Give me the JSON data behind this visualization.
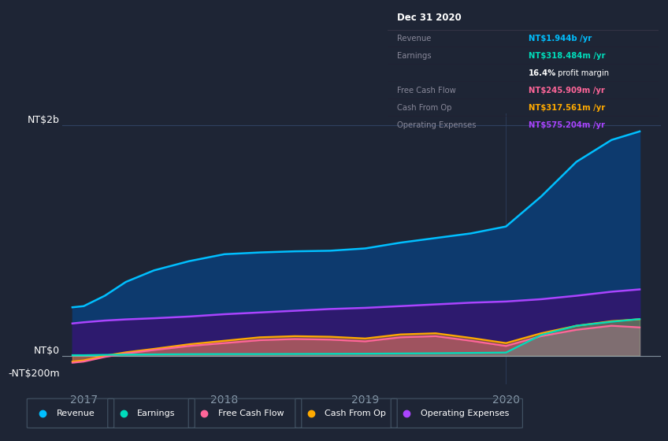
{
  "bg_color": "#1e2535",
  "plot_bg_color": "#1e2535",
  "y_label_top": "NT$2b",
  "y_label_zero": "NT$0",
  "y_label_neg": "-NT$200m",
  "ylim": [
    -250,
    2100
  ],
  "xlim_left": 2016.85,
  "xlim_right": 2021.1,
  "x_ticks": [
    2017,
    2018,
    2019,
    2020
  ],
  "series": {
    "Revenue": {
      "color": "#00bfff",
      "fill_color": "#0d3a6e",
      "fill_alpha": 1.0,
      "values_x": [
        2016.92,
        2017.0,
        2017.15,
        2017.3,
        2017.5,
        2017.75,
        2018.0,
        2018.25,
        2018.5,
        2018.75,
        2019.0,
        2019.25,
        2019.5,
        2019.75,
        2020.0,
        2020.25,
        2020.5,
        2020.75,
        2020.95
      ],
      "values_y": [
        420,
        430,
        520,
        640,
        740,
        820,
        880,
        895,
        905,
        910,
        930,
        980,
        1020,
        1060,
        1120,
        1380,
        1680,
        1870,
        1944
      ]
    },
    "Operating Expenses": {
      "color": "#aa44ff",
      "fill_color": "#2d1a6e",
      "fill_alpha": 1.0,
      "values_x": [
        2016.92,
        2017.0,
        2017.15,
        2017.3,
        2017.5,
        2017.75,
        2018.0,
        2018.25,
        2018.5,
        2018.75,
        2019.0,
        2019.25,
        2019.5,
        2019.75,
        2020.0,
        2020.25,
        2020.5,
        2020.75,
        2020.95
      ],
      "values_y": [
        280,
        290,
        305,
        315,
        325,
        340,
        360,
        375,
        390,
        405,
        415,
        430,
        445,
        460,
        470,
        490,
        520,
        555,
        575
      ]
    },
    "Cash From Op": {
      "color": "#ffaa00",
      "fill_color": "#ffaa00",
      "fill_alpha": 0.35,
      "values_x": [
        2016.92,
        2017.0,
        2017.15,
        2017.3,
        2017.5,
        2017.75,
        2018.0,
        2018.25,
        2018.5,
        2018.75,
        2019.0,
        2019.25,
        2019.5,
        2019.75,
        2020.0,
        2020.25,
        2020.5,
        2020.75,
        2020.95
      ],
      "values_y": [
        -50,
        -40,
        0,
        30,
        60,
        100,
        130,
        160,
        170,
        165,
        150,
        185,
        195,
        155,
        110,
        195,
        260,
        300,
        317
      ]
    },
    "Free Cash Flow": {
      "color": "#ff6699",
      "fill_color": "#ff6699",
      "fill_alpha": 0.3,
      "values_x": [
        2016.92,
        2017.0,
        2017.15,
        2017.3,
        2017.5,
        2017.75,
        2018.0,
        2018.25,
        2018.5,
        2018.75,
        2019.0,
        2019.25,
        2019.5,
        2019.75,
        2020.0,
        2020.25,
        2020.5,
        2020.75,
        2020.95
      ],
      "values_y": [
        -60,
        -50,
        -10,
        20,
        50,
        85,
        110,
        135,
        145,
        140,
        125,
        160,
        170,
        130,
        85,
        170,
        225,
        260,
        246
      ]
    },
    "Earnings": {
      "color": "#00ddbb",
      "fill_color": "#00ddbb",
      "fill_alpha": 0.2,
      "values_x": [
        2016.92,
        2017.0,
        2017.15,
        2017.3,
        2017.5,
        2017.75,
        2018.0,
        2018.25,
        2018.5,
        2018.75,
        2019.0,
        2019.25,
        2019.5,
        2019.75,
        2020.0,
        2020.25,
        2020.5,
        2020.75,
        2020.95
      ],
      "values_y": [
        5,
        5,
        8,
        10,
        12,
        14,
        15,
        15,
        16,
        17,
        18,
        20,
        22,
        25,
        28,
        180,
        260,
        295,
        318
      ]
    }
  },
  "info_table": {
    "date": "Dec 31 2020",
    "rows": [
      {
        "label": "Revenue",
        "value": "NT$1.944b /yr",
        "value_color": "#00bfff"
      },
      {
        "label": "Earnings",
        "value": "NT$318.484m /yr",
        "value_color": "#00ddbb"
      },
      {
        "label": "",
        "value": "16.4% profit margin",
        "value_color": "#ffffff"
      },
      {
        "label": "Free Cash Flow",
        "value": "NT$245.909m /yr",
        "value_color": "#ff6699"
      },
      {
        "label": "Cash From Op",
        "value": "NT$317.561m /yr",
        "value_color": "#ffaa00"
      },
      {
        "label": "Operating Expenses",
        "value": "NT$575.204m /yr",
        "value_color": "#aa44ff"
      }
    ]
  },
  "legend": [
    {
      "label": "Revenue",
      "color": "#00bfff"
    },
    {
      "label": "Earnings",
      "color": "#00ddbb"
    },
    {
      "label": "Free Cash Flow",
      "color": "#ff6699"
    },
    {
      "label": "Cash From Op",
      "color": "#ffaa00"
    },
    {
      "label": "Operating Expenses",
      "color": "#aa44ff"
    }
  ],
  "gridline_color": "#304060",
  "text_color": "#8899aa",
  "zero_line_color": "#9aabb5"
}
